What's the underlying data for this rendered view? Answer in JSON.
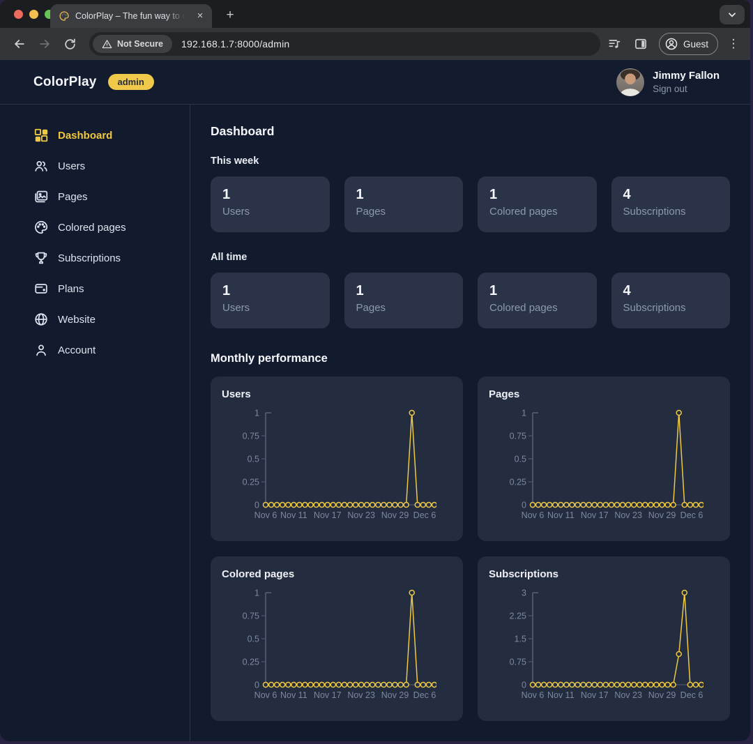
{
  "browser": {
    "tab": {
      "title": "ColorPlay – The fun way to co"
    },
    "security_badge": "Not Secure",
    "url": "192.168.1.7:8000/admin",
    "profile_label": "Guest",
    "icons": {
      "close_tab": "×",
      "new_tab": "+",
      "tab_overflow": "⌄",
      "menu_kebab": "⋮"
    }
  },
  "header": {
    "brand": "ColorPlay",
    "badge": "admin",
    "user": {
      "name": "Jimmy Fallon",
      "action": "Sign out"
    }
  },
  "sidebar": {
    "items": [
      {
        "label": "Dashboard",
        "icon": "dashboard-icon",
        "active": true
      },
      {
        "label": "Users",
        "icon": "users-icon",
        "active": false
      },
      {
        "label": "Pages",
        "icon": "pages-icon",
        "active": false
      },
      {
        "label": "Colored pages",
        "icon": "palette-icon",
        "active": false
      },
      {
        "label": "Subscriptions",
        "icon": "trophy-icon",
        "active": false
      },
      {
        "label": "Plans",
        "icon": "wallet-icon",
        "active": false
      },
      {
        "label": "Website",
        "icon": "globe-icon",
        "active": false
      },
      {
        "label": "Account",
        "icon": "person-icon",
        "active": false
      }
    ]
  },
  "main": {
    "title": "Dashboard",
    "sections": [
      {
        "label": "This week",
        "cards": [
          {
            "value": "1",
            "label": "Users"
          },
          {
            "value": "1",
            "label": "Pages"
          },
          {
            "value": "1",
            "label": "Colored pages"
          },
          {
            "value": "4",
            "label": "Subscriptions"
          }
        ]
      },
      {
        "label": "All time",
        "cards": [
          {
            "value": "1",
            "label": "Users"
          },
          {
            "value": "1",
            "label": "Pages"
          },
          {
            "value": "1",
            "label": "Colored pages"
          },
          {
            "value": "4",
            "label": "Subscriptions"
          }
        ]
      }
    ],
    "performance_title": "Monthly performance"
  },
  "colors": {
    "accent_yellow": "#efc83f",
    "badge_yellow": "#f0c94a",
    "page_bg": "#121a2d",
    "card_bg": "#2a3347",
    "panel_bg": "#242c40",
    "chart_line": "#eec943",
    "chart_axis": "#566079",
    "chart_tick_text": "#7d87a0"
  },
  "chart_data": [
    {
      "type": "line",
      "title": "Users",
      "categories": [
        "Nov 6",
        "Nov 7",
        "Nov 8",
        "Nov 9",
        "Nov 10",
        "Nov 11",
        "Nov 12",
        "Nov 13",
        "Nov 14",
        "Nov 15",
        "Nov 16",
        "Nov 17",
        "Nov 18",
        "Nov 19",
        "Nov 20",
        "Nov 21",
        "Nov 22",
        "Nov 23",
        "Nov 24",
        "Nov 25",
        "Nov 26",
        "Nov 27",
        "Nov 28",
        "Nov 29",
        "Nov 30",
        "Dec 1",
        "Dec 2",
        "Dec 3",
        "Dec 4",
        "Dec 5",
        "Dec 6"
      ],
      "values": [
        0,
        0,
        0,
        0,
        0,
        0,
        0,
        0,
        0,
        0,
        0,
        0,
        0,
        0,
        0,
        0,
        0,
        0,
        0,
        0,
        0,
        0,
        0,
        0,
        0,
        0,
        1,
        0,
        0,
        0,
        0
      ],
      "ylim": [
        0,
        1
      ],
      "yticks": [
        0,
        0.25,
        0.5,
        0.75,
        1
      ],
      "xticks": [
        {
          "label": "Nov 6",
          "index": 0
        },
        {
          "label": "Nov 11",
          "index": 5
        },
        {
          "label": "Nov 17",
          "index": 11
        },
        {
          "label": "Nov 23",
          "index": 17
        },
        {
          "label": "Nov 29",
          "index": 23
        },
        {
          "label": "Dec 6",
          "index": 30
        }
      ],
      "line_color": "#eec943",
      "axis_color": "#566079",
      "tick_label_color": "#7d87a0",
      "marker_fill": "#242c40",
      "grid": false,
      "legend": "none"
    },
    {
      "type": "line",
      "title": "Pages",
      "categories": [
        "Nov 6",
        "Nov 7",
        "Nov 8",
        "Nov 9",
        "Nov 10",
        "Nov 11",
        "Nov 12",
        "Nov 13",
        "Nov 14",
        "Nov 15",
        "Nov 16",
        "Nov 17",
        "Nov 18",
        "Nov 19",
        "Nov 20",
        "Nov 21",
        "Nov 22",
        "Nov 23",
        "Nov 24",
        "Nov 25",
        "Nov 26",
        "Nov 27",
        "Nov 28",
        "Nov 29",
        "Nov 30",
        "Dec 1",
        "Dec 2",
        "Dec 3",
        "Dec 4",
        "Dec 5",
        "Dec 6"
      ],
      "values": [
        0,
        0,
        0,
        0,
        0,
        0,
        0,
        0,
        0,
        0,
        0,
        0,
        0,
        0,
        0,
        0,
        0,
        0,
        0,
        0,
        0,
        0,
        0,
        0,
        0,
        0,
        1,
        0,
        0,
        0,
        0
      ],
      "ylim": [
        0,
        1
      ],
      "yticks": [
        0,
        0.25,
        0.5,
        0.75,
        1
      ],
      "xticks": [
        {
          "label": "Nov 6",
          "index": 0
        },
        {
          "label": "Nov 11",
          "index": 5
        },
        {
          "label": "Nov 17",
          "index": 11
        },
        {
          "label": "Nov 23",
          "index": 17
        },
        {
          "label": "Nov 29",
          "index": 23
        },
        {
          "label": "Dec 6",
          "index": 30
        }
      ],
      "line_color": "#eec943",
      "axis_color": "#566079",
      "tick_label_color": "#7d87a0",
      "marker_fill": "#242c40",
      "grid": false,
      "legend": "none"
    },
    {
      "type": "line",
      "title": "Colored pages",
      "categories": [
        "Nov 6",
        "Nov 7",
        "Nov 8",
        "Nov 9",
        "Nov 10",
        "Nov 11",
        "Nov 12",
        "Nov 13",
        "Nov 14",
        "Nov 15",
        "Nov 16",
        "Nov 17",
        "Nov 18",
        "Nov 19",
        "Nov 20",
        "Nov 21",
        "Nov 22",
        "Nov 23",
        "Nov 24",
        "Nov 25",
        "Nov 26",
        "Nov 27",
        "Nov 28",
        "Nov 29",
        "Nov 30",
        "Dec 1",
        "Dec 2",
        "Dec 3",
        "Dec 4",
        "Dec 5",
        "Dec 6"
      ],
      "values": [
        0,
        0,
        0,
        0,
        0,
        0,
        0,
        0,
        0,
        0,
        0,
        0,
        0,
        0,
        0,
        0,
        0,
        0,
        0,
        0,
        0,
        0,
        0,
        0,
        0,
        0,
        1,
        0,
        0,
        0,
        0
      ],
      "ylim": [
        0,
        1
      ],
      "yticks": [
        0,
        0.25,
        0.5,
        0.75,
        1
      ],
      "xticks": [
        {
          "label": "Nov 6",
          "index": 0
        },
        {
          "label": "Nov 11",
          "index": 5
        },
        {
          "label": "Nov 17",
          "index": 11
        },
        {
          "label": "Nov 23",
          "index": 17
        },
        {
          "label": "Nov 29",
          "index": 23
        },
        {
          "label": "Dec 6",
          "index": 30
        }
      ],
      "line_color": "#eec943",
      "axis_color": "#566079",
      "tick_label_color": "#7d87a0",
      "marker_fill": "#242c40",
      "grid": false,
      "legend": "none"
    },
    {
      "type": "line",
      "title": "Subscriptions",
      "categories": [
        "Nov 6",
        "Nov 7",
        "Nov 8",
        "Nov 9",
        "Nov 10",
        "Nov 11",
        "Nov 12",
        "Nov 13",
        "Nov 14",
        "Nov 15",
        "Nov 16",
        "Nov 17",
        "Nov 18",
        "Nov 19",
        "Nov 20",
        "Nov 21",
        "Nov 22",
        "Nov 23",
        "Nov 24",
        "Nov 25",
        "Nov 26",
        "Nov 27",
        "Nov 28",
        "Nov 29",
        "Nov 30",
        "Dec 1",
        "Dec 2",
        "Dec 3",
        "Dec 4",
        "Dec 5",
        "Dec 6"
      ],
      "values": [
        0,
        0,
        0,
        0,
        0,
        0,
        0,
        0,
        0,
        0,
        0,
        0,
        0,
        0,
        0,
        0,
        0,
        0,
        0,
        0,
        0,
        0,
        0,
        0,
        0,
        0,
        1,
        3,
        0,
        0,
        0
      ],
      "ylim": [
        0,
        3
      ],
      "yticks": [
        0,
        0.75,
        1.5,
        2.25,
        3
      ],
      "xticks": [
        {
          "label": "Nov 6",
          "index": 0
        },
        {
          "label": "Nov 11",
          "index": 5
        },
        {
          "label": "Nov 17",
          "index": 11
        },
        {
          "label": "Nov 23",
          "index": 17
        },
        {
          "label": "Nov 29",
          "index": 23
        },
        {
          "label": "Dec 6",
          "index": 30
        }
      ],
      "line_color": "#eec943",
      "axis_color": "#566079",
      "tick_label_color": "#7d87a0",
      "marker_fill": "#242c40",
      "grid": false,
      "legend": "none"
    }
  ]
}
